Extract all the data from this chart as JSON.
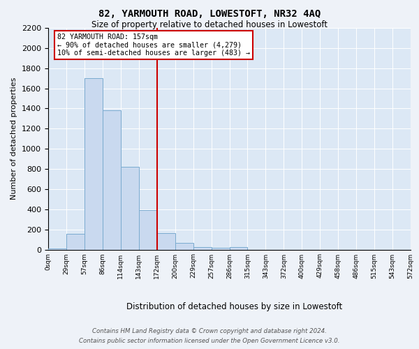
{
  "title": "82, YARMOUTH ROAD, LOWESTOFT, NR32 4AQ",
  "subtitle": "Size of property relative to detached houses in Lowestoft",
  "xlabel": "Distribution of detached houses by size in Lowestoft",
  "ylabel": "Number of detached properties",
  "bin_labels": [
    "0sqm",
    "29sqm",
    "57sqm",
    "86sqm",
    "114sqm",
    "143sqm",
    "172sqm",
    "200sqm",
    "229sqm",
    "257sqm",
    "286sqm",
    "315sqm",
    "343sqm",
    "372sqm",
    "400sqm",
    "429sqm",
    "458sqm",
    "486sqm",
    "515sqm",
    "543sqm",
    "572sqm"
  ],
  "bar_values": [
    10,
    155,
    1700,
    1385,
    820,
    390,
    160,
    65,
    25,
    20,
    25,
    0,
    0,
    0,
    0,
    0,
    0,
    0,
    0,
    0
  ],
  "bar_color": "#c9d9ef",
  "bar_edge_color": "#7aabcf",
  "property_line_bin": 6,
  "property_line_color": "#cc0000",
  "annotation_text": "82 YARMOUTH ROAD: 157sqm\n← 90% of detached houses are smaller (4,279)\n10% of semi-detached houses are larger (483) →",
  "annotation_box_color": "#ffffff",
  "annotation_box_edge": "#cc0000",
  "ylim": [
    0,
    2200
  ],
  "yticks": [
    0,
    200,
    400,
    600,
    800,
    1000,
    1200,
    1400,
    1600,
    1800,
    2000,
    2200
  ],
  "footer_line1": "Contains HM Land Registry data © Crown copyright and database right 2024.",
  "footer_line2": "Contains public sector information licensed under the Open Government Licence v3.0.",
  "background_color": "#eef2f8",
  "plot_bg_color": "#dce8f5"
}
